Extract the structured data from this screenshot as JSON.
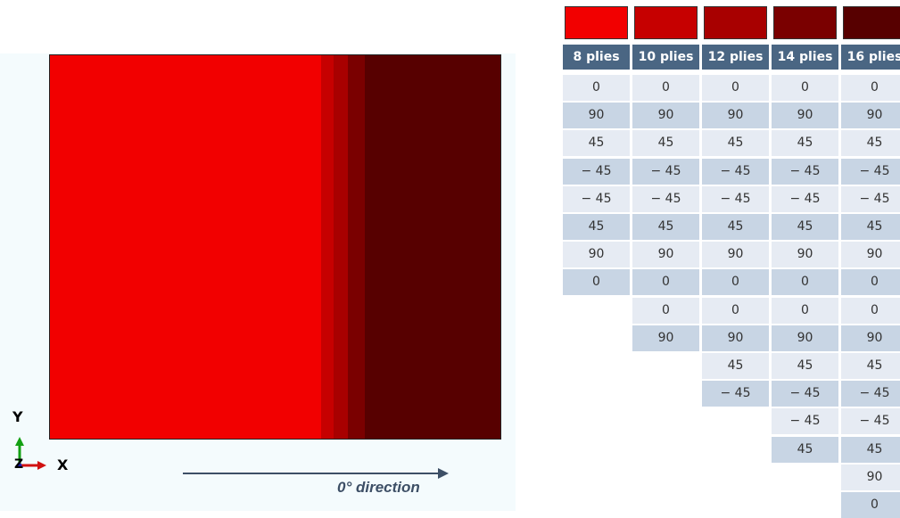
{
  "colors": {
    "plies_8": "#f20000",
    "plies_10": "#c60000",
    "plies_12": "#a80000",
    "plies_14": "#7a0000",
    "plies_16": "#570000"
  },
  "axes": {
    "y": "Y",
    "z": "Z",
    "x": "X"
  },
  "direction_label": "0° direction",
  "columns": [
    {
      "header": "8 plies",
      "color_key": "plies_8",
      "layers": [
        "0",
        "90",
        "45",
        "− 45",
        "− 45",
        "45",
        "90",
        "0"
      ]
    },
    {
      "header": "10 plies",
      "color_key": "plies_10",
      "layers": [
        "0",
        "90",
        "45",
        "− 45",
        "− 45",
        "45",
        "90",
        "0",
        "0",
        "90"
      ]
    },
    {
      "header": "12 plies",
      "color_key": "plies_12",
      "layers": [
        "0",
        "90",
        "45",
        "− 45",
        "− 45",
        "45",
        "90",
        "0",
        "0",
        "90",
        "45",
        "− 45"
      ]
    },
    {
      "header": "14 plies",
      "color_key": "plies_14",
      "layers": [
        "0",
        "90",
        "45",
        "− 45",
        "− 45",
        "45",
        "90",
        "0",
        "0",
        "90",
        "45",
        "− 45",
        "− 45",
        "45"
      ]
    },
    {
      "header": "16 plies",
      "color_key": "plies_16",
      "layers": [
        "0",
        "90",
        "45",
        "− 45",
        "− 45",
        "45",
        "90",
        "0",
        "0",
        "90",
        "45",
        "− 45",
        "− 45",
        "45",
        "90",
        "0"
      ]
    }
  ]
}
